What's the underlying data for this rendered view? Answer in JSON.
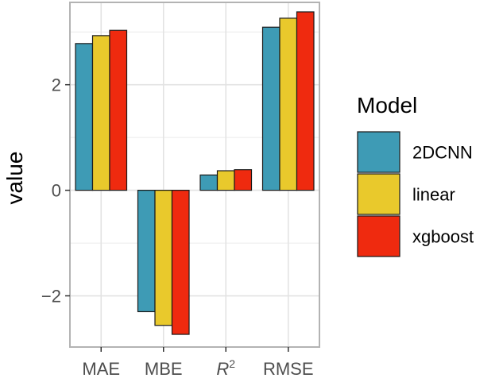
{
  "chart_data": {
    "type": "bar",
    "categories": [
      "MAE",
      "MBE",
      "R2",
      "RMSE"
    ],
    "series": [
      {
        "name": "2DCNN",
        "values": [
          2.78,
          -2.3,
          0.29,
          3.09
        ]
      },
      {
        "name": "linear",
        "values": [
          2.93,
          -2.56,
          0.37,
          3.26
        ]
      },
      {
        "name": "xgboost",
        "values": [
          3.03,
          -2.73,
          0.39,
          3.38
        ]
      }
    ],
    "colors": [
      "#3e9bb5",
      "#e9c92c",
      "#ef2a0f"
    ],
    "ylabel": "value",
    "xlabel": "",
    "ylim": [
      -2.97,
      3.56
    ],
    "yticks": [
      -2,
      0,
      2
    ],
    "grid": true,
    "legend": {
      "title": "Model",
      "position": "right"
    }
  }
}
